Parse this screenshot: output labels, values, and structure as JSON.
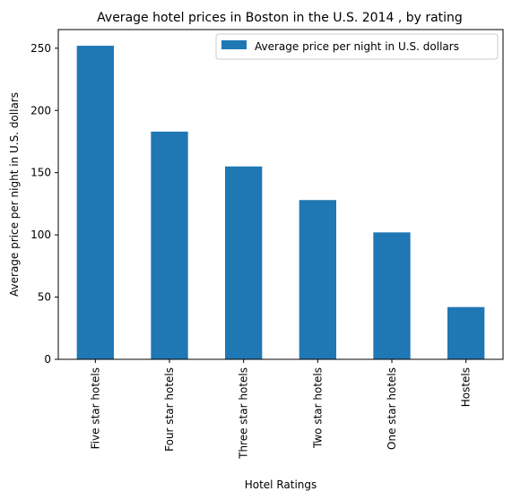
{
  "chart_data": {
    "type": "bar",
    "title": "Average hotel prices in Boston in the U.S. 2014 , by rating",
    "xlabel": "Hotel Ratings",
    "ylabel": "Average price per night in U.S. dollars",
    "categories": [
      "Five star hotels",
      "Four star hotels",
      "Three star hotels",
      "Two star hotels",
      "One star hotels",
      "Hostels"
    ],
    "series": [
      {
        "name": "Average price per night in U.S. dollars",
        "values": [
          252,
          183,
          155,
          128,
          102,
          42
        ],
        "color": "#1f77b4"
      }
    ],
    "ylim": [
      0,
      265
    ],
    "yticks": [
      0,
      50,
      100,
      150,
      200,
      250
    ],
    "grid": false,
    "legend_position": "top-right"
  }
}
